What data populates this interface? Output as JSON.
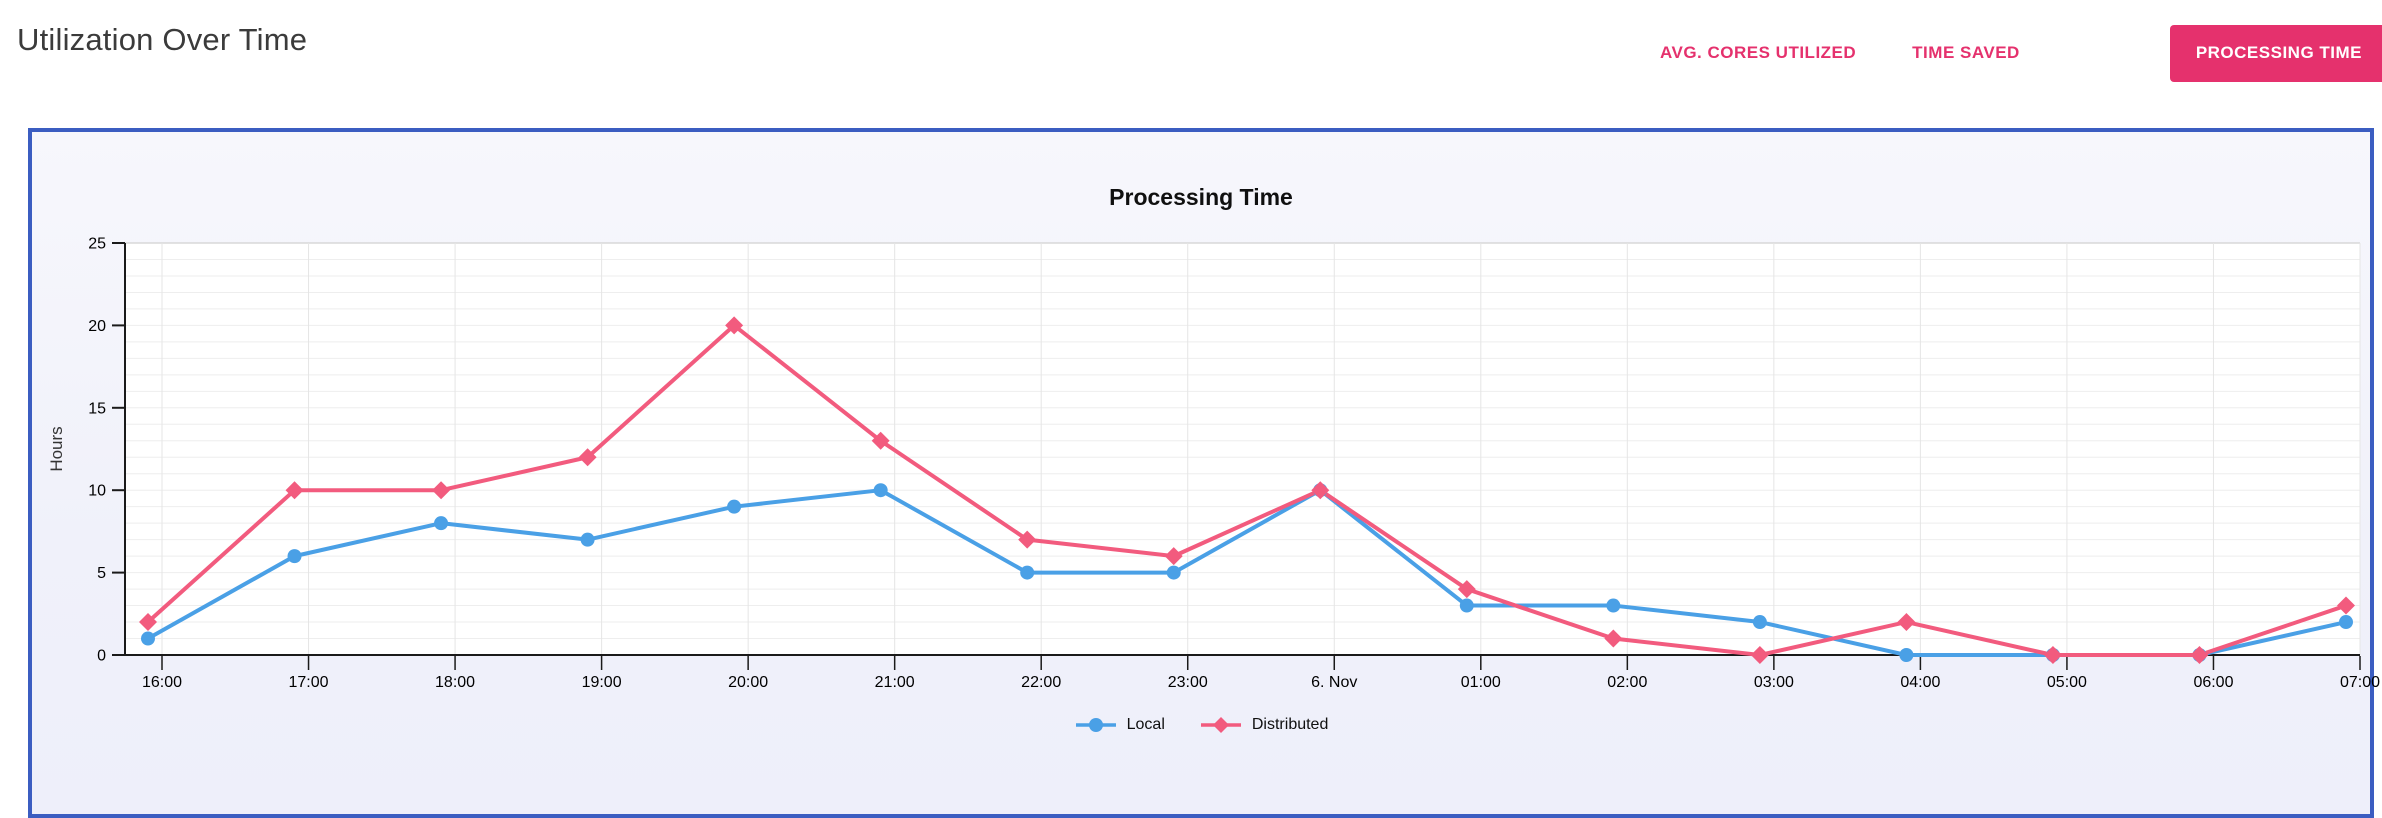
{
  "header": {
    "title": "Utilization Over Time",
    "tabs": [
      {
        "label": "AVG. CORES UTILIZED",
        "active": false
      },
      {
        "label": "TIME SAVED",
        "active": false
      },
      {
        "label": "PROCESSING TIME",
        "active": true
      }
    ]
  },
  "colors": {
    "accent_pink": "#e5316d",
    "panel_border_blue": "#3b5dc1",
    "panel_background": "#f0f1fa",
    "series_local_blue": "#4aa0e6",
    "series_distributed_pink": "#f25b7e",
    "axis": "#1a1a1a",
    "grid_minor": "#eeeeee",
    "grid_vertical": "#e5e5e5",
    "plot_top_border": "#d8d8d8"
  },
  "chart_data": {
    "type": "line",
    "title": "Processing Time",
    "xlabel": "",
    "ylabel": "Hours",
    "ylim": [
      0,
      25
    ],
    "yticks": [
      0,
      5,
      10,
      15,
      20,
      25
    ],
    "grid": true,
    "legend_position": "bottom",
    "categories": [
      "16:00",
      "17:00",
      "18:00",
      "19:00",
      "20:00",
      "21:00",
      "22:00",
      "23:00",
      "6. Nov",
      "01:00",
      "02:00",
      "03:00",
      "04:00",
      "05:00",
      "06:00",
      "07:00"
    ],
    "series": [
      {
        "name": "Local",
        "marker": "circle",
        "color": "#4aa0e6",
        "values": [
          1,
          6,
          8,
          7,
          9,
          10,
          5,
          5,
          10,
          3,
          3,
          2,
          0,
          0,
          0,
          2
        ]
      },
      {
        "name": "Distributed",
        "marker": "diamond",
        "color": "#f25b7e",
        "values": [
          2,
          10,
          10,
          12,
          20,
          13,
          7,
          6,
          10,
          4,
          1,
          0,
          2,
          0,
          0,
          3
        ]
      }
    ]
  }
}
